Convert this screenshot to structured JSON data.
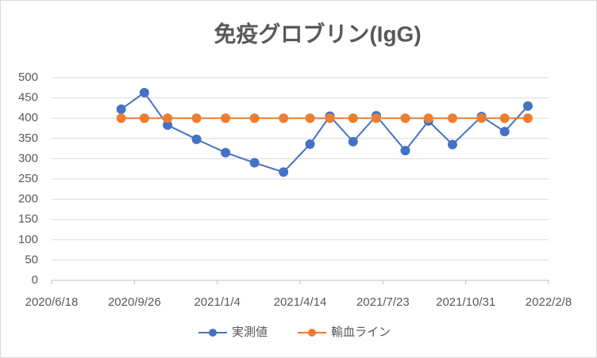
{
  "chart_data": {
    "type": "scatter",
    "title": "免疫グロブリン(IgG)",
    "x": [
      "2020/9/10",
      "2020/10/8",
      "2020/11/5",
      "2020/12/10",
      "2021/1/14",
      "2021/2/18",
      "2021/3/25",
      "2021/4/26",
      "2021/5/20",
      "2021/6/17",
      "2021/7/15",
      "2021/8/19",
      "2021/9/16",
      "2021/10/15",
      "2021/11/19",
      "2021/12/17",
      "2022/1/14"
    ],
    "series": [
      {
        "name": "実測値",
        "color": "#4472c4",
        "values": [
          422,
          463,
          383,
          348,
          315,
          290,
          267,
          336,
          405,
          342,
          406,
          320,
          393,
          335,
          404,
          367,
          430
        ]
      },
      {
        "name": "輸血ライン",
        "color": "#ed7d31",
        "values": [
          400,
          400,
          400,
          400,
          400,
          400,
          400,
          400,
          400,
          400,
          400,
          400,
          400,
          400,
          400,
          400,
          400
        ]
      }
    ],
    "xlim": [
      "2020/6/18",
      "2022/2/8"
    ],
    "xticks": [
      "2020/6/18",
      "2020/9/26",
      "2021/1/4",
      "2021/4/14",
      "2021/7/23",
      "2021/10/31",
      "2022/2/8"
    ],
    "ylim": [
      0,
      500
    ],
    "yticks": [
      0,
      50,
      100,
      150,
      200,
      250,
      300,
      350,
      400,
      450,
      500
    ],
    "grid": true,
    "legend": "bottom"
  }
}
